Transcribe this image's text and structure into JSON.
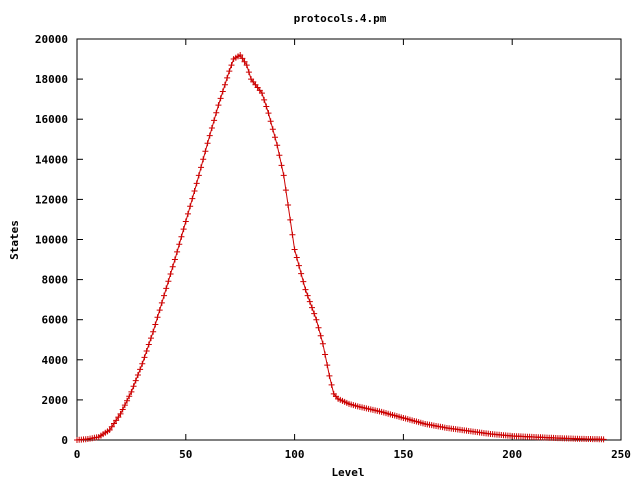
{
  "chart_data": {
    "type": "line",
    "title": "protocols.4.pm",
    "xlabel": "Level",
    "ylabel": "States",
    "xlim": [
      0,
      250
    ],
    "ylim": [
      0,
      20000
    ],
    "x_ticks": [
      0,
      50,
      100,
      150,
      200,
      250
    ],
    "y_ticks": [
      0,
      2000,
      4000,
      6000,
      8000,
      10000,
      12000,
      14000,
      16000,
      18000,
      20000
    ],
    "grid": false,
    "legend": "none",
    "marker": "plus",
    "series": [
      {
        "color": "#cc0000",
        "x": [
          0,
          5,
          10,
          15,
          20,
          25,
          30,
          35,
          40,
          45,
          50,
          55,
          60,
          65,
          70,
          72,
          75,
          78,
          80,
          85,
          88,
          92,
          95,
          100,
          105,
          110,
          113,
          116,
          118,
          120,
          125,
          130,
          140,
          150,
          160,
          170,
          180,
          190,
          200,
          210,
          220,
          230,
          240,
          242
        ],
        "y": [
          0,
          50,
          150,
          500,
          1300,
          2400,
          3800,
          5400,
          7200,
          9000,
          10900,
          12800,
          14800,
          16700,
          18400,
          19000,
          19200,
          18700,
          18000,
          17300,
          16300,
          14700,
          13200,
          9500,
          7500,
          6000,
          4800,
          3200,
          2300,
          2050,
          1800,
          1650,
          1400,
          1100,
          800,
          600,
          450,
          300,
          200,
          150,
          100,
          60,
          40,
          30
        ]
      }
    ]
  }
}
